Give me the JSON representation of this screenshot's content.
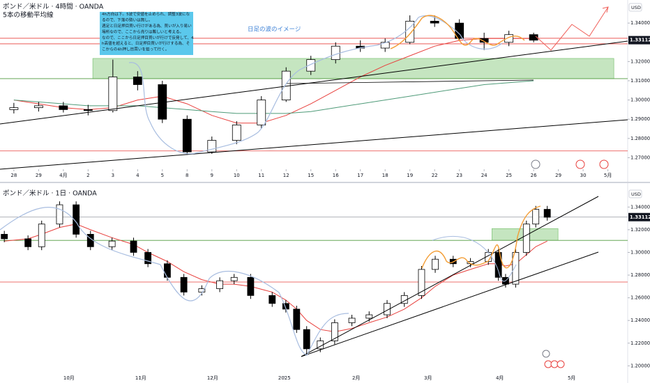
{
  "chart_data": [
    {
      "type": "candlestick",
      "title": "ポンド／米ドル · 4時間 · OANDA",
      "subtitle": "5本の移動平均線",
      "currency": "USD",
      "last_price": 1.33112,
      "annotation": [
        "4h方向は下。5波で安値を止められ、調整3波にな",
        "るので、下落の勢いは無し。",
        "週足と日足押目買い行けがある為、買いが入り易い",
        "場所なので、ここから売りは難しいと考える。",
        "なので、ここから日足押目買いが行けで反発して、4",
        "h高値を超えると、日足押目買いが行けする為、そ",
        "こからの4h押し目買いを狙って行く。"
      ],
      "wave_label": "日足の波のイメージ",
      "xlim": [
        -0.56,
        24.8
      ],
      "ylim": [
        1.264,
        1.352
      ],
      "xticks": [
        {
          "value": 0,
          "label": "28"
        },
        {
          "value": 1,
          "label": "29"
        },
        {
          "value": 2,
          "label": "4月"
        },
        {
          "value": 3,
          "label": "2"
        },
        {
          "value": 4,
          "label": "3"
        },
        {
          "value": 5,
          "label": "4"
        },
        {
          "value": 6,
          "label": "5"
        },
        {
          "value": 7,
          "label": "8"
        },
        {
          "value": 8,
          "label": "9"
        },
        {
          "value": 9,
          "label": "10"
        },
        {
          "value": 10,
          "label": "11"
        },
        {
          "value": 11,
          "label": "12"
        },
        {
          "value": 12,
          "label": "15"
        },
        {
          "value": 13,
          "label": "16"
        },
        {
          "value": 14,
          "label": "17"
        },
        {
          "value": 15,
          "label": "18"
        },
        {
          "value": 16,
          "label": "19"
        },
        {
          "value": 17,
          "label": "22"
        },
        {
          "value": 18,
          "label": "23"
        },
        {
          "value": 19,
          "label": "24"
        },
        {
          "value": 20,
          "label": "25"
        },
        {
          "value": 21,
          "label": "26"
        },
        {
          "value": 22,
          "label": "29"
        },
        {
          "value": 23,
          "label": "30"
        },
        {
          "value": 24,
          "label": "5月"
        }
      ],
      "yticks": [
        {
          "value": 1.27,
          "label": "1.27000"
        },
        {
          "value": 1.28,
          "label": "1.28000"
        },
        {
          "value": 1.29,
          "label": "1.29000"
        },
        {
          "value": 1.3,
          "label": "1.30000"
        },
        {
          "value": 1.31,
          "label": "1.31000"
        },
        {
          "value": 1.32,
          "label": "1.32000"
        },
        {
          "value": 1.33,
          "label": "1.33000"
        },
        {
          "value": 1.34,
          "label": "1.34000"
        }
      ],
      "up_color": "#ffffff",
      "down_color": "#000000",
      "x": [
        0,
        1,
        2,
        3,
        4,
        5,
        6,
        7,
        8,
        9,
        10,
        11,
        12,
        13,
        14,
        15,
        16,
        17,
        18,
        19,
        20,
        21
      ],
      "open": [
        1.295,
        1.296,
        1.297,
        1.295,
        1.2945,
        1.312,
        1.308,
        1.29,
        1.273,
        1.279,
        1.287,
        1.3,
        1.315,
        1.321,
        1.328,
        1.327,
        1.33,
        1.341,
        1.34,
        1.332,
        1.33,
        1.334
      ],
      "high": [
        1.2985,
        1.299,
        1.299,
        1.2975,
        1.321,
        1.315,
        1.31,
        1.292,
        1.281,
        1.289,
        1.302,
        1.317,
        1.323,
        1.33,
        1.331,
        1.332,
        1.344,
        1.344,
        1.342,
        1.335,
        1.336,
        1.335
      ],
      "low": [
        1.293,
        1.294,
        1.2935,
        1.292,
        1.2935,
        1.305,
        1.288,
        1.2715,
        1.272,
        1.277,
        1.285,
        1.299,
        1.313,
        1.319,
        1.325,
        1.325,
        1.329,
        1.338,
        1.331,
        1.326,
        1.328,
        1.33
      ],
      "close": [
        1.296,
        1.297,
        1.295,
        1.2945,
        1.312,
        1.308,
        1.29,
        1.273,
        1.279,
        1.287,
        1.3,
        1.315,
        1.321,
        1.328,
        1.327,
        1.33,
        1.341,
        1.34,
        1.332,
        1.33,
        1.334,
        1.3311
      ],
      "series": [
        {
          "color": "#e8403d",
          "values": [
            1.3,
            1.298,
            1.296,
            1.295,
            1.296,
            1.3,
            1.302,
            1.298,
            1.292,
            1.288,
            1.288,
            1.292,
            1.298,
            1.305,
            1.312,
            1.318,
            1.323,
            1.328,
            1.331,
            1.332,
            1.332,
            1.332
          ]
        },
        {
          "color": "#4e9a78",
          "values": [
            1.3,
            1.299,
            1.298,
            1.297,
            1.297,
            1.297,
            1.296,
            1.295,
            1.294,
            1.293,
            1.293,
            1.293,
            1.294,
            1.296,
            1.298,
            1.3,
            1.302,
            1.304,
            1.306,
            1.308,
            1.309,
            1.31
          ]
        }
      ],
      "hlines": [
        {
          "value": 1.3321,
          "color": "#e8403d"
        },
        {
          "value": 1.3292,
          "color": "#e8403d"
        },
        {
          "value": 1.2735,
          "color": "#e8403d"
        },
        {
          "value": 1.3111,
          "color": "#4e9a3c"
        }
      ],
      "zone": {
        "low": 1.3111,
        "high": 1.3216,
        "x_from": 3.19,
        "x_to": 24.24,
        "color": "#b7dfb0"
      }
    },
    {
      "type": "candlestick",
      "title": "ポンド／米ドル · 1日 · OANDA",
      "currency": "USD",
      "last_price": 1.33112,
      "xlim": [
        0.04,
        8.78
      ],
      "ylim": [
        1.191,
        1.358
      ],
      "xticks": [
        {
          "value": 1,
          "label": "10月"
        },
        {
          "value": 2,
          "label": "11月"
        },
        {
          "value": 3,
          "label": "12月"
        },
        {
          "value": 4,
          "label": "2025"
        },
        {
          "value": 5,
          "label": "2月"
        },
        {
          "value": 6,
          "label": "3月"
        },
        {
          "value": 7,
          "label": "4月"
        },
        {
          "value": 8,
          "label": "5月"
        }
      ],
      "yticks": [
        {
          "value": 1.2,
          "label": "1.20000"
        },
        {
          "value": 1.22,
          "label": "1.22000"
        },
        {
          "value": 1.24,
          "label": "1.24000"
        },
        {
          "value": 1.26,
          "label": "1.26000"
        },
        {
          "value": 1.28,
          "label": "1.28000"
        },
        {
          "value": 1.3,
          "label": "1.30000"
        },
        {
          "value": 1.32,
          "label": "1.32000"
        },
        {
          "value": 1.34,
          "label": "1.34000"
        }
      ],
      "up_color": "#ffffff",
      "down_color": "#000000",
      "x": [
        0.1,
        0.43,
        0.62,
        0.87,
        1.1,
        1.3,
        1.6,
        1.9,
        2.1,
        2.37,
        2.6,
        2.85,
        3.1,
        3.3,
        3.53,
        3.83,
        4.02,
        4.17,
        4.31,
        4.5,
        4.7,
        4.94,
        5.18,
        5.43,
        5.67,
        5.91,
        6.1,
        6.35,
        6.59,
        6.84,
        6.98,
        7.08,
        7.22,
        7.37,
        7.5,
        7.66
      ],
      "open": [
        1.316,
        1.312,
        1.305,
        1.325,
        1.342,
        1.316,
        1.305,
        1.31,
        1.3,
        1.29,
        1.278,
        1.265,
        1.268,
        1.275,
        1.278,
        1.262,
        1.255,
        1.25,
        1.232,
        1.215,
        1.222,
        1.238,
        1.242,
        1.245,
        1.255,
        1.262,
        1.285,
        1.294,
        1.29,
        1.292,
        1.3,
        1.278,
        1.272,
        1.3,
        1.325,
        1.338
      ],
      "high": [
        1.319,
        1.315,
        1.328,
        1.345,
        1.345,
        1.319,
        1.313,
        1.313,
        1.303,
        1.293,
        1.281,
        1.271,
        1.278,
        1.281,
        1.281,
        1.265,
        1.258,
        1.253,
        1.235,
        1.225,
        1.241,
        1.245,
        1.248,
        1.258,
        1.265,
        1.288,
        1.297,
        1.297,
        1.295,
        1.303,
        1.303,
        1.281,
        1.303,
        1.328,
        1.341,
        1.341
      ],
      "low": [
        1.309,
        1.302,
        1.302,
        1.322,
        1.313,
        1.302,
        1.302,
        1.297,
        1.287,
        1.275,
        1.262,
        1.262,
        1.265,
        1.272,
        1.259,
        1.252,
        1.247,
        1.229,
        1.209,
        1.212,
        1.219,
        1.235,
        1.239,
        1.242,
        1.252,
        1.259,
        1.282,
        1.287,
        1.287,
        1.289,
        1.275,
        1.269,
        1.269,
        1.297,
        1.322,
        1.328
      ],
      "close": [
        1.312,
        1.305,
        1.325,
        1.342,
        1.316,
        1.305,
        1.31,
        1.3,
        1.29,
        1.278,
        1.265,
        1.268,
        1.275,
        1.278,
        1.262,
        1.255,
        1.25,
        1.232,
        1.215,
        1.222,
        1.238,
        1.242,
        1.245,
        1.255,
        1.262,
        1.285,
        1.294,
        1.29,
        1.292,
        1.3,
        1.278,
        1.272,
        1.3,
        1.325,
        1.338,
        1.331
      ],
      "series": [
        {
          "color": "#e8403d",
          "values": [
            1.31,
            1.312,
            1.316,
            1.322,
            1.325,
            1.32,
            1.313,
            1.307,
            1.3,
            1.292,
            1.283,
            1.276,
            1.272,
            1.272,
            1.27,
            1.265,
            1.258,
            1.25,
            1.24,
            1.232,
            1.23,
            1.233,
            1.238,
            1.243,
            1.25,
            1.26,
            1.27,
            1.28,
            1.285,
            1.29,
            1.29,
            1.288,
            1.29,
            1.298,
            1.305,
            1.31
          ]
        }
      ],
      "hlines": [
        {
          "value": 1.33112,
          "color": "#9598a1"
        },
        {
          "value": 1.3106,
          "color": "#4e9a3c"
        },
        {
          "value": 1.2739,
          "color": "#e8403d"
        }
      ],
      "zone": {
        "low": 1.3106,
        "high": 1.321,
        "x_from": 6.89,
        "x_to": 7.81,
        "color": "#b7dfb0"
      }
    }
  ]
}
